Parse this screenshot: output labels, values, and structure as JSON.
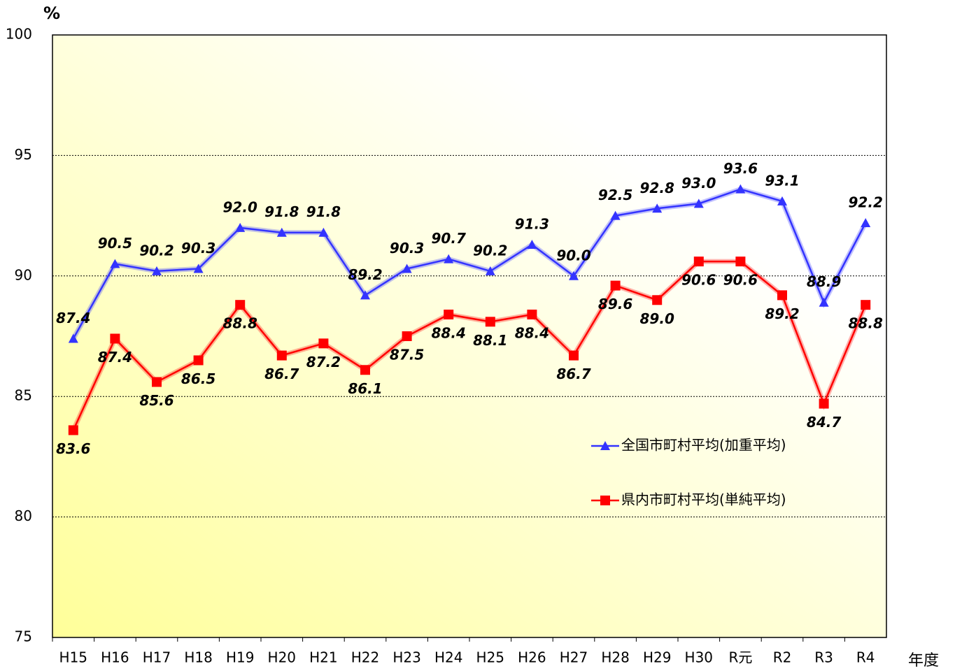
{
  "chart_data": {
    "type": "line",
    "y_label": "%",
    "x_label": "年度",
    "categories": [
      "H15",
      "H16",
      "H17",
      "H18",
      "H19",
      "H20",
      "H21",
      "H22",
      "H23",
      "H24",
      "H25",
      "H26",
      "H27",
      "H28",
      "H29",
      "H30",
      "R元",
      "R2",
      "R3",
      "R4"
    ],
    "series": [
      {
        "name": "全国市町村平均(加重平均)",
        "color": "#3333ff",
        "marker": "triangle",
        "values": [
          87.4,
          90.5,
          90.2,
          90.3,
          92.0,
          91.8,
          91.8,
          89.2,
          90.3,
          90.7,
          90.2,
          91.3,
          90.0,
          92.5,
          92.8,
          93.0,
          93.6,
          93.1,
          88.9,
          92.2
        ],
        "value_labels": [
          "87.4",
          "90.5",
          "90.2",
          "90.3",
          "92.0",
          "91.8",
          "91.8",
          "89.2",
          "90.3",
          "90.7",
          "90.2",
          "91.3",
          "90.0",
          "92.5",
          "92.8",
          "93.0",
          "93.6",
          "93.1",
          "88.9",
          "92.2"
        ]
      },
      {
        "name": "県内市町村平均(単純平均)",
        "color": "#ff0000",
        "marker": "square",
        "values": [
          83.6,
          87.4,
          85.6,
          86.5,
          88.8,
          86.7,
          87.2,
          86.1,
          87.5,
          88.4,
          88.1,
          88.4,
          86.7,
          89.6,
          89.0,
          90.6,
          90.6,
          89.2,
          84.7,
          88.8
        ],
        "value_labels": [
          "83.6",
          "87.4",
          "85.6",
          "86.5",
          "88.8",
          "86.7",
          "87.2",
          "86.1",
          "87.5",
          "88.4",
          "88.1",
          "88.4",
          "86.7",
          "89.6",
          "89.0",
          "90.6",
          "90.6",
          "89.2",
          "84.7",
          "88.8"
        ]
      }
    ],
    "ylim": [
      75,
      100
    ],
    "yticks": [
      75,
      80,
      85,
      90,
      95,
      100
    ],
    "grid": true
  }
}
